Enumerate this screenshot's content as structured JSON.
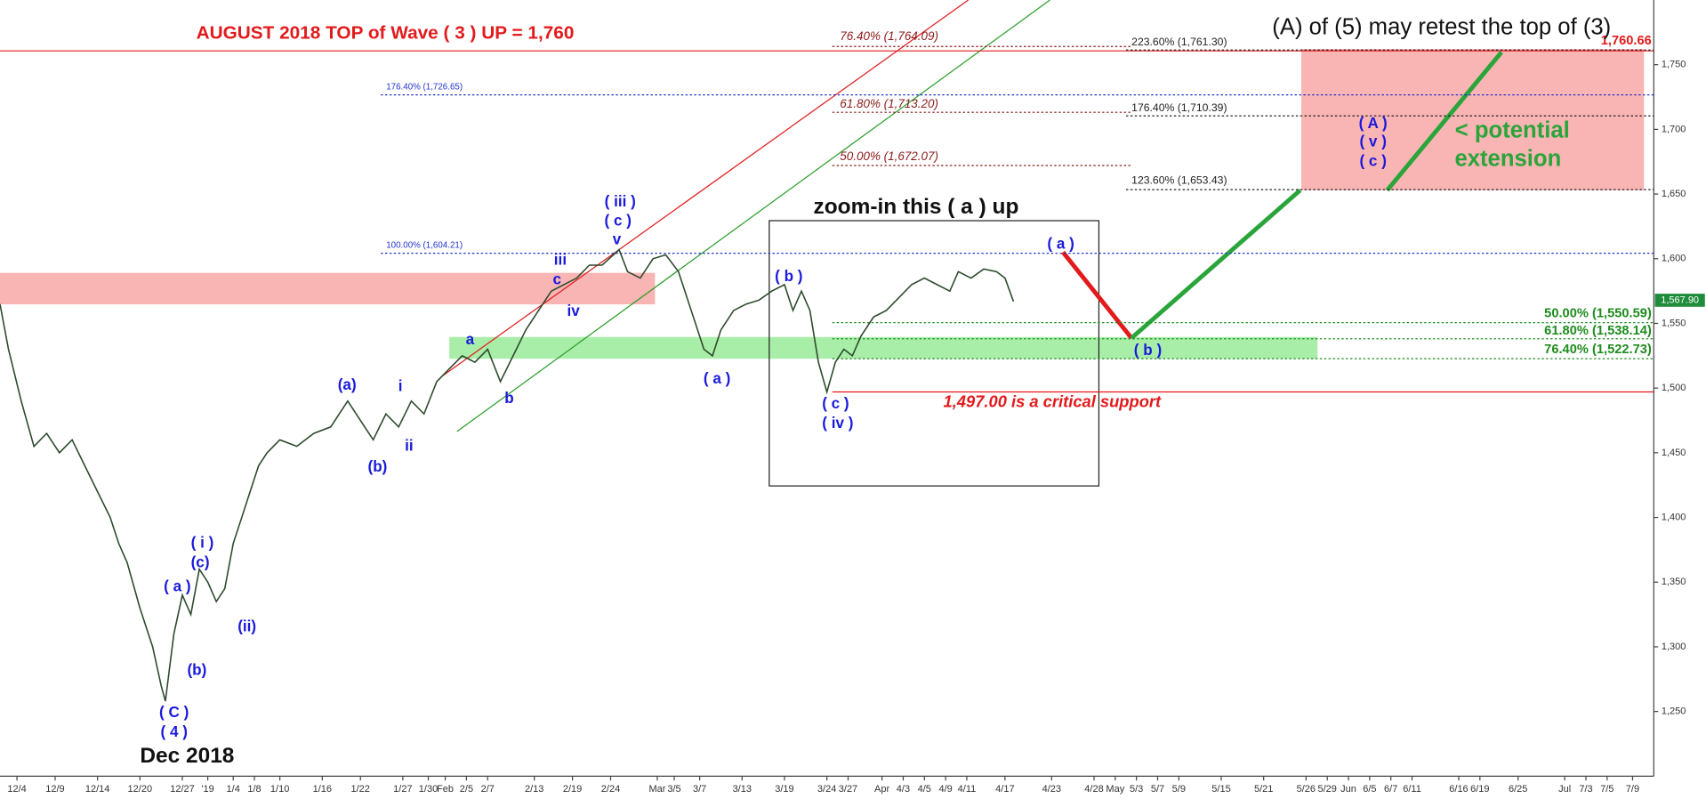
{
  "chart_data": {
    "type": "line",
    "color": "#2d4a2d",
    "x": [
      0,
      2,
      5,
      8,
      11,
      14,
      17,
      20,
      23,
      26,
      28,
      30,
      33,
      36,
      38,
      39,
      41,
      43,
      45,
      47,
      49,
      51,
      53,
      55,
      57,
      59,
      61,
      63,
      66,
      70,
      74,
      78,
      82,
      85,
      88,
      91,
      94,
      97,
      100,
      103,
      106,
      109,
      112,
      115,
      118,
      121,
      124,
      127,
      130,
      133,
      136,
      139,
      142,
      146,
      148,
      151,
      154,
      157,
      160,
      163,
      166,
      168,
      170,
      173,
      176,
      179,
      182,
      185,
      187,
      189,
      191,
      193,
      195,
      197,
      199,
      201,
      203,
      206,
      209,
      212,
      215,
      218,
      221,
      224,
      226,
      229,
      232,
      235,
      237,
      239
    ],
    "values": [
      1565,
      1530,
      1490,
      1455,
      1465,
      1450,
      1460,
      1440,
      1420,
      1400,
      1380,
      1365,
      1330,
      1300,
      1270,
      1258,
      1310,
      1340,
      1325,
      1360,
      1350,
      1335,
      1345,
      1380,
      1400,
      1420,
      1440,
      1450,
      1460,
      1455,
      1465,
      1470,
      1490,
      1475,
      1460,
      1480,
      1470,
      1490,
      1480,
      1505,
      1515,
      1525,
      1520,
      1530,
      1505,
      1525,
      1545,
      1560,
      1575,
      1580,
      1585,
      1595,
      1595,
      1607,
      1590,
      1585,
      1600,
      1603,
      1590,
      1560,
      1530,
      1525,
      1545,
      1560,
      1565,
      1568,
      1575,
      1580,
      1560,
      1575,
      1560,
      1520,
      1497,
      1520,
      1530,
      1525,
      1540,
      1555,
      1560,
      1570,
      1580,
      1585,
      1580,
      1575,
      1590,
      1585,
      1592,
      1590,
      1585,
      1567
    ],
    "xlim": [
      0,
      390
    ],
    "ylim": [
      1200,
      1800
    ],
    "yticks": [
      {
        "value": 1250,
        "label": "1,250"
      },
      {
        "value": 1300,
        "label": "1,300"
      },
      {
        "value": 1350,
        "label": "1,350"
      },
      {
        "value": 1400,
        "label": "1,400"
      },
      {
        "value": 1450,
        "label": "1,450"
      },
      {
        "value": 1500,
        "label": "1,500"
      },
      {
        "value": 1550,
        "label": "1,550"
      },
      {
        "value": 1600,
        "label": "1,600"
      },
      {
        "value": 1650,
        "label": "1,650"
      },
      {
        "value": 1700,
        "label": "1,700"
      },
      {
        "value": 1750,
        "label": "1,750"
      }
    ],
    "xticks": [
      {
        "value": 4,
        "label": "12/4"
      },
      {
        "value": 13,
        "label": "12/9"
      },
      {
        "value": 23,
        "label": "12/14"
      },
      {
        "value": 33,
        "label": "12/20"
      },
      {
        "value": 43,
        "label": "12/27"
      },
      {
        "value": 49,
        "label": "'19"
      },
      {
        "value": 55,
        "label": "1/4"
      },
      {
        "value": 60,
        "label": "1/8"
      },
      {
        "value": 66,
        "label": "1/10"
      },
      {
        "value": 76,
        "label": "1/16"
      },
      {
        "value": 85,
        "label": "1/22"
      },
      {
        "value": 95,
        "label": "1/27"
      },
      {
        "value": 101,
        "label": "1/30"
      },
      {
        "value": 105,
        "label": "Feb"
      },
      {
        "value": 110,
        "label": "2/5"
      },
      {
        "value": 115,
        "label": "2/7"
      },
      {
        "value": 126,
        "label": "2/13"
      },
      {
        "value": 135,
        "label": "2/19"
      },
      {
        "value": 144,
        "label": "2/24"
      },
      {
        "value": 155,
        "label": "Mar"
      },
      {
        "value": 159,
        "label": "3/5"
      },
      {
        "value": 165,
        "label": "3/7"
      },
      {
        "value": 175,
        "label": "3/13"
      },
      {
        "value": 185,
        "label": "3/19"
      },
      {
        "value": 195,
        "label": "3/24"
      },
      {
        "value": 200,
        "label": "3/27"
      },
      {
        "value": 208,
        "label": "Apr"
      },
      {
        "value": 213,
        "label": "4/3"
      },
      {
        "value": 218,
        "label": "4/5"
      },
      {
        "value": 223,
        "label": "4/9"
      },
      {
        "value": 228,
        "label": "4/11"
      },
      {
        "value": 237,
        "label": "4/17"
      },
      {
        "value": 248,
        "label": "4/23"
      },
      {
        "value": 258,
        "label": "4/28"
      },
      {
        "value": 263,
        "label": "May"
      },
      {
        "value": 268,
        "label": "5/3"
      },
      {
        "value": 273,
        "label": "5/7"
      },
      {
        "value": 278,
        "label": "5/9"
      },
      {
        "value": 288,
        "label": "5/15"
      },
      {
        "value": 298,
        "label": "5/21"
      },
      {
        "value": 308,
        "label": "5/26"
      },
      {
        "value": 313,
        "label": "5/29"
      },
      {
        "value": 318,
        "label": "Jun"
      },
      {
        "value": 323,
        "label": "6/5"
      },
      {
        "value": 328,
        "label": "6/7"
      },
      {
        "value": 333,
        "label": "6/11"
      },
      {
        "value": 344,
        "label": "6/16"
      },
      {
        "value": 349,
        "label": "6/19"
      },
      {
        "value": 358,
        "label": "6/25"
      },
      {
        "value": 369,
        "label": "Jul"
      },
      {
        "value": 374,
        "label": "7/3"
      },
      {
        "value": 379,
        "label": "7/5"
      },
      {
        "value": 385,
        "label": "7/9"
      }
    ],
    "last_price": {
      "value": 1567.9,
      "label": "1,567.90"
    },
    "levels": [
      {
        "value": 1760.66,
        "label": "1,760.66",
        "color": "#e31a1c"
      },
      {
        "value": 1764.09,
        "label": "76.40% (1,764.09)",
        "color": "#8b1a1a"
      },
      {
        "value": 1761.3,
        "label": "223.60% (1,761.30)",
        "color": "#222222"
      },
      {
        "value": 1726.65,
        "label": "176.40% (1,726.65)",
        "color": "#2233cc"
      },
      {
        "value": 1713.2,
        "label": "61.80% (1,713.20)",
        "color": "#8b1a1a"
      },
      {
        "value": 1710.39,
        "label": "176.40% (1,710.39)",
        "color": "#222222"
      },
      {
        "value": 1672.07,
        "label": "50.00% (1,672.07)",
        "color": "#8b1a1a"
      },
      {
        "value": 1653.43,
        "label": "123.60% (1,653.43)",
        "color": "#222222"
      },
      {
        "value": 1604.21,
        "label": "100.00% (1,604.21)",
        "color": "#2233cc"
      },
      {
        "value": 1550.59,
        "label": "50.00% (1,550.59)",
        "color": "#1e8c1e"
      },
      {
        "value": 1538.14,
        "label": "61.80% (1,538.14)",
        "color": "#1e8c1e"
      },
      {
        "value": 1522.73,
        "label": "76.40% (1,522.73)",
        "color": "#1e8c1e"
      },
      {
        "value": 1497,
        "label": "1,497.00 is a critical support",
        "color": "#e31a1c"
      }
    ],
    "annotations": [
      "AUGUST 2018 TOP of Wave ( 3 ) UP = 1,760",
      "(A) of (5) may retest the top of (3)",
      "zoom-in this ( a ) up",
      "Dec 2018",
      "< potential",
      "extension",
      "( iii )",
      "( c )",
      "v",
      "iii",
      "c",
      "iv",
      "a",
      "b",
      "(a)",
      "i",
      "ii",
      "(b)",
      "( i )",
      "(c)",
      "( a )",
      "(ii)",
      "(b)",
      "( C )",
      "( 4 )",
      "( a )",
      "( b )",
      "( c )",
      "( iv )",
      "( a )",
      "( b )",
      "( A )",
      "( v )",
      "( c )"
    ]
  }
}
